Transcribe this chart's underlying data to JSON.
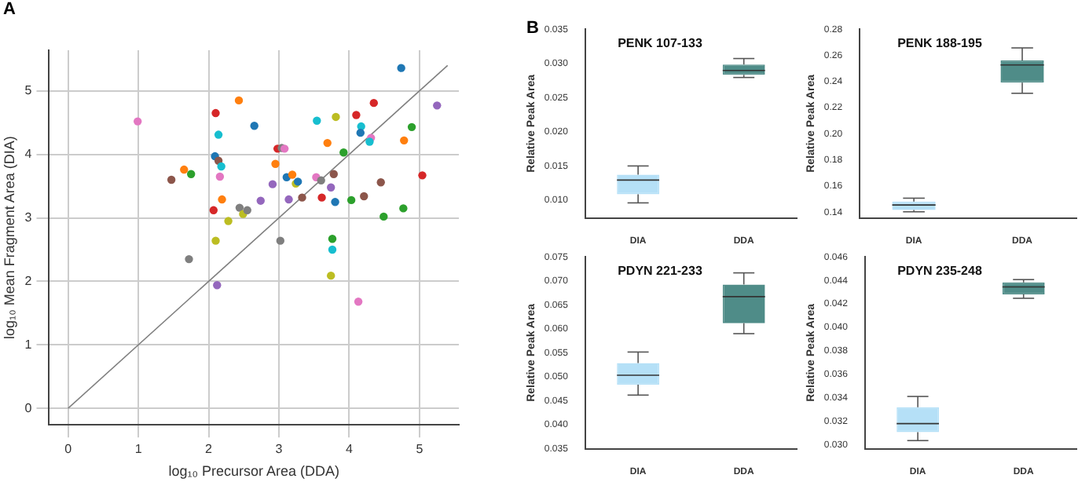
{
  "chart_data": [
    {
      "type": "scatter",
      "xlabel": "log₁₀ Precursor Area (DDA)",
      "ylabel": "log₁₀ Mean Fragment Area (DIA)",
      "annotations": [
        "A"
      ],
      "xlim": [
        -0.27,
        5.56
      ],
      "ylim": [
        -0.26,
        5.64
      ],
      "xticks": [
        0,
        1,
        2,
        3,
        4,
        5
      ],
      "yticks": [
        0,
        1,
        2,
        3,
        4,
        5
      ],
      "grid": true,
      "legend": false,
      "series": [
        {
          "type": "scatter",
          "marker": "circle",
          "x": [
            0.99,
            1.65,
            1.47,
            1.75,
            1.72,
            2.1,
            2.14,
            2.09,
            2.14,
            2.18,
            2.16,
            2.19,
            2.07,
            2.1,
            2.12,
            2.28,
            2.43,
            2.44,
            2.49,
            2.55,
            2.65,
            2.74,
            2.91,
            2.95,
            2.98,
            3.04,
            3.08,
            3.02,
            3.11,
            3.14,
            3.19,
            3.24,
            3.27,
            3.33,
            3.54,
            3.53,
            3.6,
            3.61,
            3.69,
            3.74,
            3.78,
            3.8,
            3.81,
            3.76,
            3.76,
            3.74,
            3.92,
            4.03,
            4.1,
            4.17,
            4.16,
            4.13,
            4.21,
            4.31,
            4.29,
            4.35,
            4.45,
            4.49,
            4.78,
            4.77,
            4.74,
            4.89,
            5.04,
            5.25
          ],
          "values": [
            4.52,
            3.76,
            3.6,
            3.69,
            2.35,
            4.65,
            4.31,
            3.97,
            3.9,
            3.81,
            3.65,
            3.29,
            3.12,
            2.64,
            1.94,
            2.95,
            4.85,
            3.16,
            3.06,
            3.12,
            4.45,
            3.27,
            3.53,
            3.85,
            4.09,
            4.1,
            4.09,
            2.64,
            3.64,
            3.29,
            3.68,
            3.54,
            3.57,
            3.32,
            4.53,
            3.64,
            3.59,
            3.32,
            4.18,
            3.48,
            3.69,
            3.25,
            4.59,
            2.67,
            2.5,
            2.09,
            4.03,
            3.28,
            4.62,
            4.44,
            4.34,
            1.68,
            3.34,
            4.26,
            4.2,
            4.81,
            3.56,
            3.02,
            4.22,
            3.15,
            5.36,
            4.43,
            3.67,
            4.77
          ],
          "colors": [
            "#e377c2",
            "#ff7f0e",
            "#8c564b",
            "#2ca02c",
            "#7f7f7f",
            "#d62728",
            "#17becf",
            "#1f77b4",
            "#8c564b",
            "#17becf",
            "#e377c2",
            "#ff7f0e",
            "#d62728",
            "#bcbd22",
            "#9467bd",
            "#bcbd22",
            "#ff7f0e",
            "#7f7f7f",
            "#bcbd22",
            "#7f7f7f",
            "#1f77b4",
            "#9467bd",
            "#9467bd",
            "#ff7f0e",
            "#d62728",
            "#7f7f7f",
            "#e377c2",
            "#7f7f7f",
            "#1f77b4",
            "#9467bd",
            "#ff7f0e",
            "#bcbd22",
            "#1f77b4",
            "#8c564b",
            "#17becf",
            "#e377c2",
            "#7f7f7f",
            "#d62728",
            "#ff7f0e",
            "#9467bd",
            "#8c564b",
            "#1f77b4",
            "#bcbd22",
            "#2ca02c",
            "#17becf",
            "#bcbd22",
            "#2ca02c",
            "#2ca02c",
            "#d62728",
            "#17becf",
            "#1f77b4",
            "#e377c2",
            "#8c564b",
            "#e377c2",
            "#17becf",
            "#d62728",
            "#8c564b",
            "#2ca02c",
            "#ff7f0e",
            "#2ca02c",
            "#1f77b4",
            "#2ca02c",
            "#d62728",
            "#9467bd"
          ]
        },
        {
          "type": "line",
          "x": [
            0,
            5.4
          ],
          "values": [
            0,
            5.4
          ],
          "color": "#808080",
          "marker": "none"
        }
      ]
    },
    {
      "type": "box",
      "title": "PENK 107-133",
      "ylabel": "Relative Peak Area",
      "annotations": [
        "B"
      ],
      "categories": [
        "DIA",
        "DDA"
      ],
      "colors": [
        "#b5e0f7",
        "#4f8c88"
      ],
      "ylim": [
        0.0074,
        0.035
      ],
      "yticks": [
        {
          "value": 0.01,
          "label": "0.010"
        },
        {
          "value": 0.015,
          "label": "0.015"
        },
        {
          "value": 0.02,
          "label": "0.020"
        },
        {
          "value": 0.025,
          "label": "0.025"
        },
        {
          "value": 0.03,
          "label": "0.030"
        },
        {
          "value": 0.035,
          "label": "0.035"
        }
      ],
      "grid": false,
      "legend": false,
      "boxes": [
        {
          "low": 0.0096,
          "q1": 0.01087,
          "median": 0.01294,
          "q3": 0.01373,
          "high": 0.015
        },
        {
          "low": 0.02794,
          "q1": 0.02833,
          "median": 0.02897,
          "q3": 0.02984,
          "high": 0.03071
        }
      ]
    },
    {
      "type": "box",
      "title": "PENK 188-195",
      "ylabel": "Relative Peak Area",
      "categories": [
        "DIA",
        "DDA"
      ],
      "colors": [
        "#b5e0f7",
        "#4f8c88"
      ],
      "ylim": [
        0.1357,
        0.28
      ],
      "yticks": [
        {
          "value": 0.14,
          "label": "0.14"
        },
        {
          "value": 0.16,
          "label": "0.16"
        },
        {
          "value": 0.18,
          "label": "0.18"
        },
        {
          "value": 0.2,
          "label": "0.20"
        },
        {
          "value": 0.22,
          "label": "0.22"
        },
        {
          "value": 0.24,
          "label": "0.24"
        },
        {
          "value": 0.26,
          "label": "0.26"
        },
        {
          "value": 0.28,
          "label": "0.28"
        }
      ],
      "grid": false,
      "legend": false,
      "boxes": [
        {
          "low": 0.1404,
          "q1": 0.1417,
          "median": 0.1456,
          "q3": 0.1482,
          "high": 0.1508
        },
        {
          "low": 0.231,
          "q1": 0.2392,
          "median": 0.2527,
          "q3": 0.2561,
          "high": 0.2657
        }
      ]
    },
    {
      "type": "box",
      "title": "PDYN 221-233",
      "ylabel": "Relative Peak Area",
      "categories": [
        "DIA",
        "DDA"
      ],
      "colors": [
        "#b5e0f7",
        "#4f8c88"
      ],
      "ylim": [
        0.035,
        0.075
      ],
      "yticks": [
        {
          "value": 0.035,
          "label": "0.035"
        },
        {
          "value": 0.04,
          "label": "0.040"
        },
        {
          "value": 0.045,
          "label": "0.045"
        },
        {
          "value": 0.05,
          "label": "0.050"
        },
        {
          "value": 0.055,
          "label": "0.055"
        },
        {
          "value": 0.06,
          "label": "0.060"
        },
        {
          "value": 0.065,
          "label": "0.065"
        },
        {
          "value": 0.07,
          "label": "0.070"
        },
        {
          "value": 0.075,
          "label": "0.075"
        }
      ],
      "grid": false,
      "legend": false,
      "boxes": [
        {
          "low": 0.04618,
          "q1": 0.04836,
          "median": 0.05032,
          "q3": 0.05286,
          "high": 0.05516
        },
        {
          "low": 0.05899,
          "q1": 0.06118,
          "median": 0.06671,
          "q3": 0.06924,
          "high": 0.07166
        }
      ]
    },
    {
      "type": "box",
      "title": "PDYN 235-248",
      "ylabel": "Relative Peak Area",
      "categories": [
        "DIA",
        "DDA"
      ],
      "colors": [
        "#b5e0f7",
        "#4f8c88"
      ],
      "ylim": [
        0.0297,
        0.046
      ],
      "yticks": [
        {
          "value": 0.03,
          "label": "0.030"
        },
        {
          "value": 0.032,
          "label": "0.032"
        },
        {
          "value": 0.034,
          "label": "0.034"
        },
        {
          "value": 0.036,
          "label": "0.036"
        },
        {
          "value": 0.038,
          "label": "0.038"
        },
        {
          "value": 0.04,
          "label": "0.040"
        },
        {
          "value": 0.042,
          "label": "0.042"
        },
        {
          "value": 0.044,
          "label": "0.044"
        },
        {
          "value": 0.046,
          "label": "0.046"
        }
      ],
      "grid": false,
      "legend": false,
      "boxes": [
        {
          "low": 0.03039,
          "q1": 0.03111,
          "median": 0.03183,
          "q3": 0.03323,
          "high": 0.03414
        },
        {
          "low": 0.04248,
          "q1": 0.04282,
          "median": 0.04345,
          "q3": 0.04383,
          "high": 0.04407
        }
      ]
    }
  ]
}
